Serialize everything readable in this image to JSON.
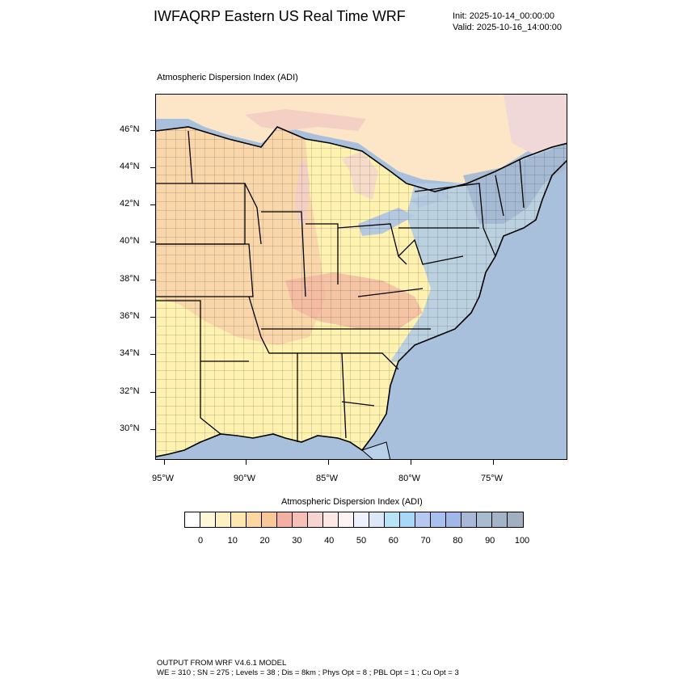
{
  "header": {
    "title": "IWFAQRP Eastern US Real Time WRF",
    "init": "Init: 2025-10-14_00:00:00",
    "valid": "Valid: 2025-10-16_14:00:00"
  },
  "map": {
    "subtitle": "Atmospheric Dispersion Index   (ADI)",
    "lat_labels": [
      "46°N",
      "44°N",
      "42°N",
      "40°N",
      "38°N",
      "36°N",
      "34°N",
      "32°N",
      "30°N"
    ],
    "lon_labels": [
      "95°W",
      "90°W",
      "85°W",
      "80°W",
      "75°W"
    ],
    "colors": {
      "ocean": "#a8c0dc",
      "land_low": "#fff2b0",
      "land_mid": "#f8d8a8",
      "land_high": "#f2b8a8",
      "land_blue": "#b8d0e8",
      "land_gray": "#a8bcd4"
    }
  },
  "colorbar": {
    "title": "Atmospheric Dispersion Index  (ADI)",
    "labels": [
      "0",
      "10",
      "20",
      "30",
      "40",
      "50",
      "60",
      "70",
      "80",
      "90",
      "100"
    ],
    "colors": [
      "#ffffff",
      "#fff8d8",
      "#fff0c0",
      "#ffe8b0",
      "#fcd8a0",
      "#f8c898",
      "#f4b0a0",
      "#f4c0b8",
      "#f8d4d0",
      "#fce8e4",
      "#fff4f4",
      "#eef2fc",
      "#dce8f8",
      "#b8e4f8",
      "#a8d8f8",
      "#b4c8f0",
      "#a8c0f0",
      "#a0b8e8",
      "#a8b8d8",
      "#a8bcd0",
      "#a4b4c8",
      "#a0b0c0"
    ]
  },
  "footer": {
    "line1": "OUTPUT FROM WRF V4.6.1 MODEL",
    "line2": "WE = 310 ; SN = 275 ; Levels = 38 ; Dis = 8km ; Phys Opt = 8 ; PBL Opt = 1 ; Cu Opt = 3"
  }
}
